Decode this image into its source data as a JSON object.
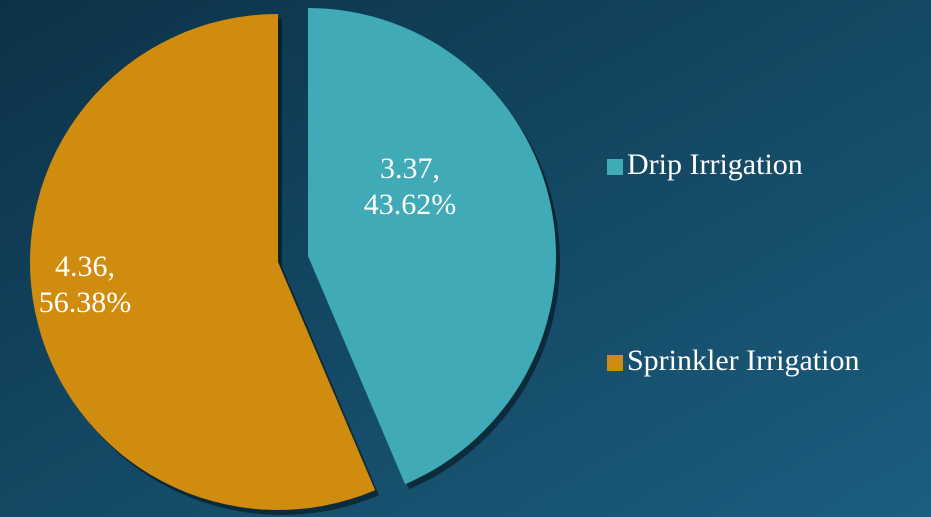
{
  "chart_data": {
    "type": "pie",
    "categories": [
      "Drip Irrigation",
      "Sprinkler Irrigation"
    ],
    "values": [
      3.37,
      4.36
    ],
    "value_labels": [
      "3.37, 43.62%",
      "4.36, 56.38%"
    ],
    "colors": [
      "#40aab6",
      "#d08c0e"
    ],
    "legend": "right"
  }
}
